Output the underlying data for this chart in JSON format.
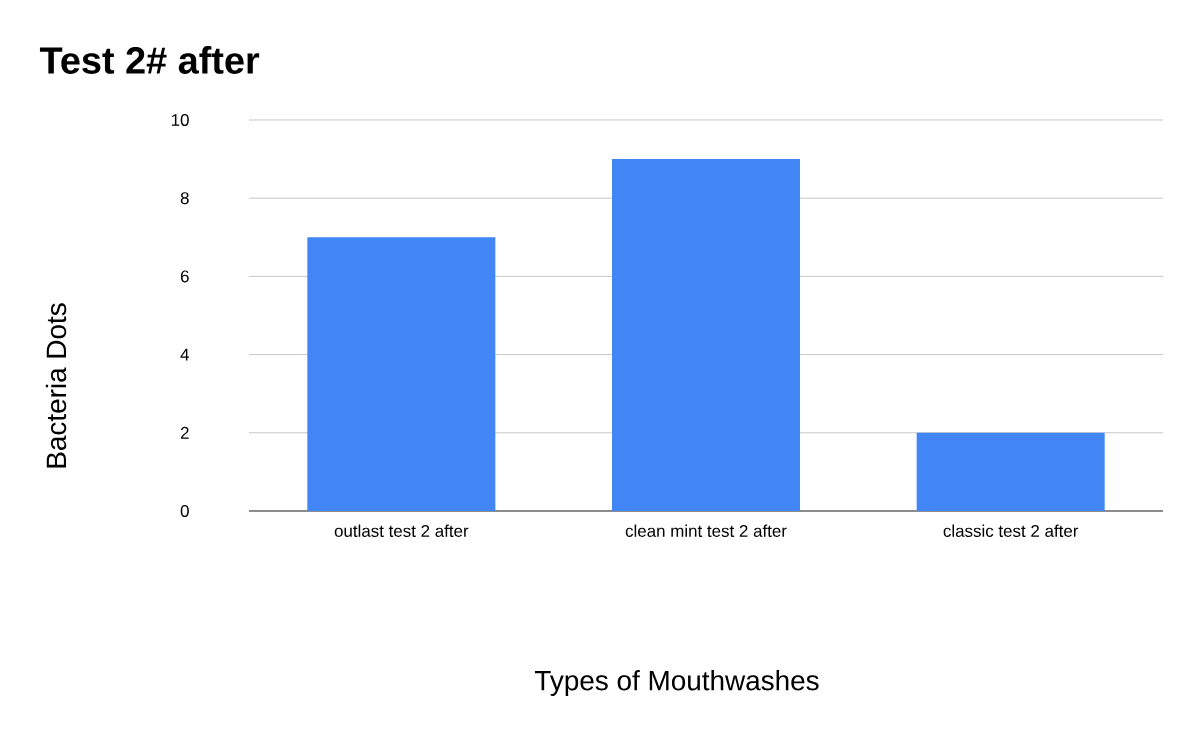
{
  "chart_data": {
    "type": "bar",
    "title": "Test 2# after",
    "xlabel": "Types of Mouthwashes",
    "ylabel": "Bacteria Dots",
    "categories": [
      "outlast test 2 after",
      "clean mint test 2 after",
      "classic test 2 after"
    ],
    "values": [
      7,
      9,
      2
    ],
    "color": "#4285f4",
    "ylim": [
      0,
      10
    ],
    "yticks": [
      0,
      2,
      4,
      6,
      8,
      10
    ],
    "grid": "y"
  }
}
